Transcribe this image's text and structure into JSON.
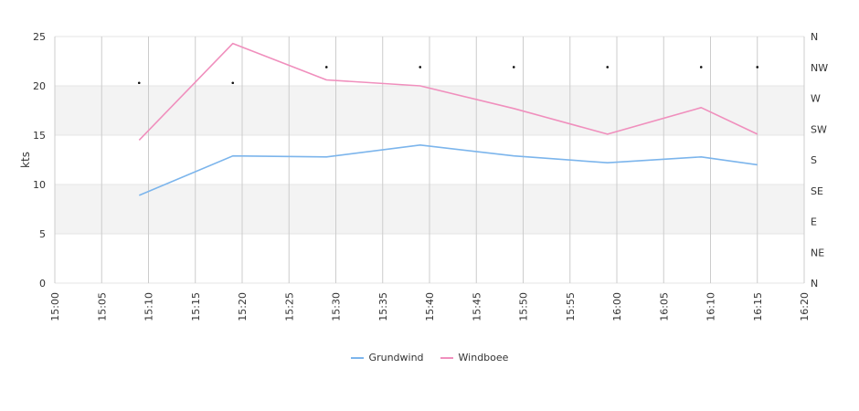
{
  "chart_data": {
    "type": "line",
    "title": "",
    "xlabel": "",
    "ylabel": "kts",
    "ylim": [
      0,
      25
    ],
    "yticks": [
      "0",
      "5",
      "10",
      "15",
      "20",
      "25"
    ],
    "xlim": [
      "15:00",
      "16:20"
    ],
    "xticks": [
      "15:00",
      "15:05",
      "15:10",
      "15:15",
      "15:20",
      "15:25",
      "15:30",
      "15:35",
      "15:40",
      "15:45",
      "15:50",
      "15:55",
      "16:00",
      "16:05",
      "16:10",
      "16:15",
      "16:20"
    ],
    "y2ticks": [
      "N",
      "NE",
      "E",
      "SE",
      "S",
      "SW",
      "W",
      "NW",
      "N"
    ],
    "x": [
      "15:09",
      "15:19",
      "15:29",
      "15:39",
      "15:49",
      "15:59",
      "16:09",
      "16:15"
    ],
    "series": [
      {
        "name": "Grundwind",
        "color": "#7cb5ec",
        "values": [
          8.9,
          12.9,
          12.8,
          14.0,
          12.9,
          12.2,
          12.8,
          12.0
        ]
      },
      {
        "name": "Windboee",
        "color": "#f08fbd",
        "values": [
          14.5,
          24.3,
          20.6,
          20.0,
          17.7,
          15.1,
          17.8,
          15.1
        ]
      }
    ],
    "direction_markers": {
      "x": [
        "15:09",
        "15:19",
        "15:29",
        "15:39",
        "15:49",
        "15:59",
        "16:09",
        "16:15"
      ],
      "values": [
        20.3,
        20.3,
        21.9,
        21.9,
        21.9,
        21.9,
        21.9,
        21.9
      ]
    },
    "grid": true,
    "legend_position": "bottom-center"
  }
}
